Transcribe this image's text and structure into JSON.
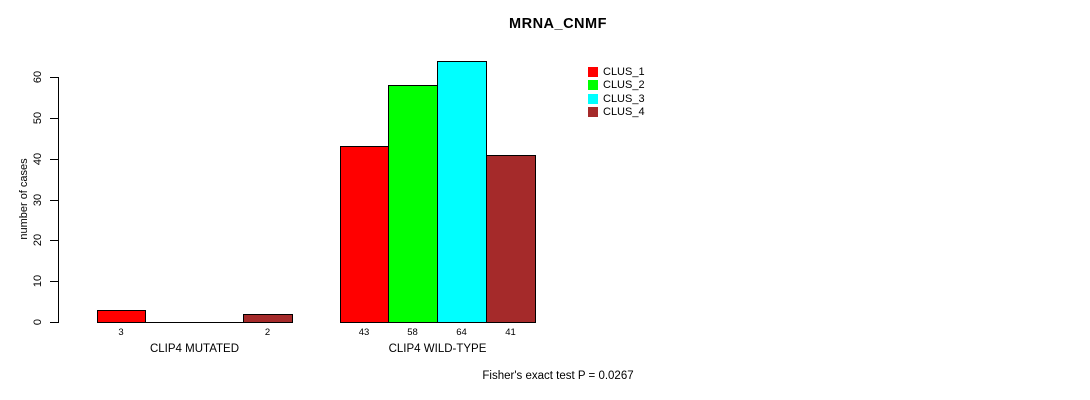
{
  "chart_data": {
    "type": "bar",
    "title": "MRNA_CNMF",
    "ylabel": "number of cases",
    "xlabel": "",
    "ylim": [
      0,
      60
    ],
    "yticks": [
      0,
      10,
      20,
      30,
      40,
      50,
      60
    ],
    "grid": false,
    "background_color": "#ffffff",
    "axis_color": "#000000",
    "categories": [
      "CLIP4 MUTATED",
      "CLIP4 WILD-TYPE"
    ],
    "series": [
      {
        "name": "CLUS_1",
        "color": "#ff0000",
        "values": [
          3,
          43
        ]
      },
      {
        "name": "CLUS_2",
        "color": "#00ff00",
        "values": [
          0,
          58
        ]
      },
      {
        "name": "CLUS_3",
        "color": "#00ffff",
        "values": [
          0,
          64
        ]
      },
      {
        "name": "CLUS_4",
        "color": "#a52a2a",
        "values": [
          2,
          41
        ]
      }
    ],
    "bar_value_labels": {
      "CLIP4 MUTATED": [
        "3",
        "",
        "",
        "2"
      ],
      "CLIP4 WILD-TYPE": [
        "43",
        "58",
        "64",
        "41"
      ]
    },
    "legend": {
      "position": "right-of-plot-center-top",
      "entries": [
        {
          "label": "CLUS_1",
          "color": "#ff0000"
        },
        {
          "label": "CLUS_2",
          "color": "#00ff00"
        },
        {
          "label": "CLUS_3",
          "color": "#00ffff"
        },
        {
          "label": "CLUS_4",
          "color": "#a52a2a"
        }
      ]
    },
    "annotation": "Fisher's exact test P = 0.0267"
  }
}
